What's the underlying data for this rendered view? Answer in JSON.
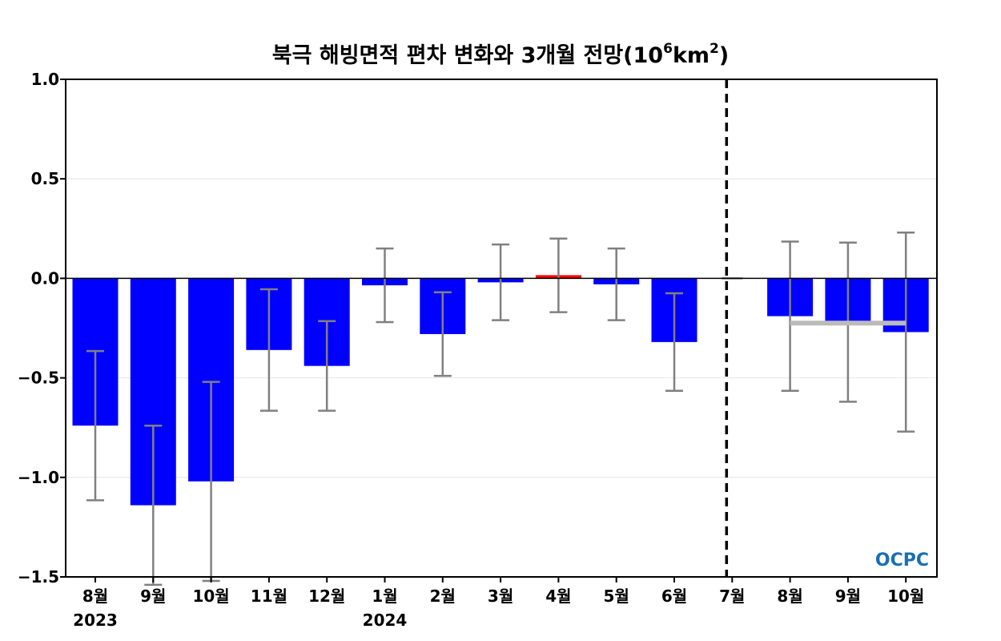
{
  "chart_data": {
    "type": "bar",
    "title_main": "북극 해빙면적 편차 변화와 3개월 전망(10",
    "title_sup1": "6",
    "title_mid": "km",
    "title_sup2": "2",
    "title_end": ")",
    "categories": [
      "8월",
      "9월",
      "10월",
      "11월",
      "12월",
      "1월",
      "2월",
      "3월",
      "4월",
      "5월",
      "6월",
      "7월",
      "8월",
      "9월",
      "10월"
    ],
    "year_labels": [
      {
        "index": 0,
        "label": "2023"
      },
      {
        "index": 5,
        "label": "2024"
      }
    ],
    "values": [
      -0.74,
      -1.14,
      -1.02,
      -0.36,
      -0.44,
      -0.035,
      -0.28,
      -0.02,
      0.015,
      -0.03,
      -0.32,
      0.0,
      -0.19,
      -0.22,
      -0.27
    ],
    "errors": [
      0.375,
      0.4,
      0.5,
      0.305,
      0.225,
      0.185,
      0.21,
      0.19,
      0.185,
      0.18,
      0.245,
      0.0,
      0.375,
      0.4,
      0.5
    ],
    "bar_colors": [
      "#0000ff",
      "#0000ff",
      "#0000ff",
      "#0000ff",
      "#0000ff",
      "#0000ff",
      "#0000ff",
      "#0000ff",
      "#ff0000",
      "#0000ff",
      "#0000ff",
      "#0000ff",
      "#0000ff",
      "#0000ff",
      "#0000ff"
    ],
    "forecast_divider_after_index": 11,
    "forecast_mean": {
      "value": -0.225,
      "from_index": 12,
      "to_index": 14,
      "color": "#bbbbbb"
    },
    "ylim": [
      -1.5,
      1.0
    ],
    "yticks": [
      1.0,
      0.5,
      0.0,
      -0.5,
      -1.0,
      -1.5
    ],
    "ytick_labels": [
      "1.0",
      "0.5",
      "0.0",
      "−0.5",
      "−1.0",
      "−1.5"
    ],
    "grid": true,
    "colors": {
      "bar": "#0000ff",
      "highlight": "#ff0000",
      "errorbar": "#808080",
      "grid": "#e6e6e6"
    },
    "logo_text": "OCPC"
  }
}
